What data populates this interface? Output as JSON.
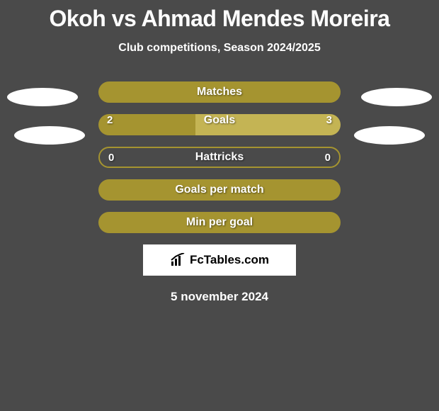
{
  "title": "Okoh vs Ahmad Mendes Moreira",
  "subtitle": "Club competitions, Season 2024/2025",
  "colors": {
    "background": "#4a4a4a",
    "barFill": "#a59430",
    "barFillAlt": "#c4b454",
    "barBorder": "#a59430",
    "text": "#ffffff",
    "brandBox": "#ffffff",
    "brandIcon": "#000000"
  },
  "sideEllipses": {
    "leftTop": true,
    "leftBottom": true,
    "rightTop": true,
    "rightBottom": true
  },
  "bars": [
    {
      "label": "Matches",
      "left": null,
      "right": null,
      "style": "full",
      "leftPct": 100,
      "rightPct": 0
    },
    {
      "label": "Goals",
      "left": "2",
      "right": "3",
      "style": "split",
      "leftPct": 40,
      "rightPct": 60
    },
    {
      "label": "Hattricks",
      "left": "0",
      "right": "0",
      "style": "border",
      "leftPct": 0,
      "rightPct": 0
    },
    {
      "label": "Goals per match",
      "left": null,
      "right": null,
      "style": "full",
      "leftPct": 100,
      "rightPct": 0
    },
    {
      "label": "Min per goal",
      "left": null,
      "right": null,
      "style": "full",
      "leftPct": 100,
      "rightPct": 0
    }
  ],
  "brand": "FcTables.com",
  "date": "5 november 2024"
}
